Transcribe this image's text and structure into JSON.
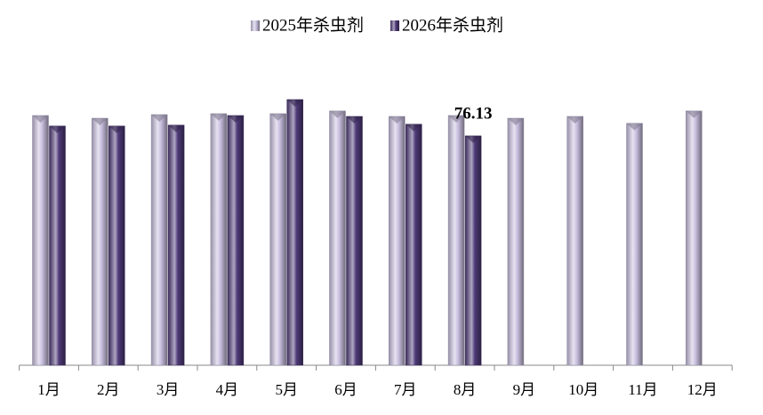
{
  "chart_data": {
    "type": "bar",
    "categories": [
      "1月",
      "2月",
      "3月",
      "4月",
      "5月",
      "6月",
      "7月",
      "8月",
      "9月",
      "10月",
      "11月",
      "12月"
    ],
    "series": [
      {
        "name": "2025年杀虫剂",
        "color": "#c9c0e0",
        "values": [
          82.9,
          82.0,
          83.2,
          83.5,
          83.5,
          84.4,
          82.6,
          82.9,
          82.0,
          82.6,
          80.3,
          84.4
        ]
      },
      {
        "name": "2026年杀虫剂",
        "color": "#4e3a78",
        "values": [
          79.4,
          79.4,
          79.7,
          82.9,
          88.2,
          82.6,
          80.0,
          76.13,
          null,
          null,
          null,
          null
        ],
        "value_labels": [
          null,
          null,
          null,
          null,
          null,
          null,
          null,
          "76.13",
          null,
          null,
          null,
          null
        ]
      }
    ],
    "legend": "top"
  }
}
